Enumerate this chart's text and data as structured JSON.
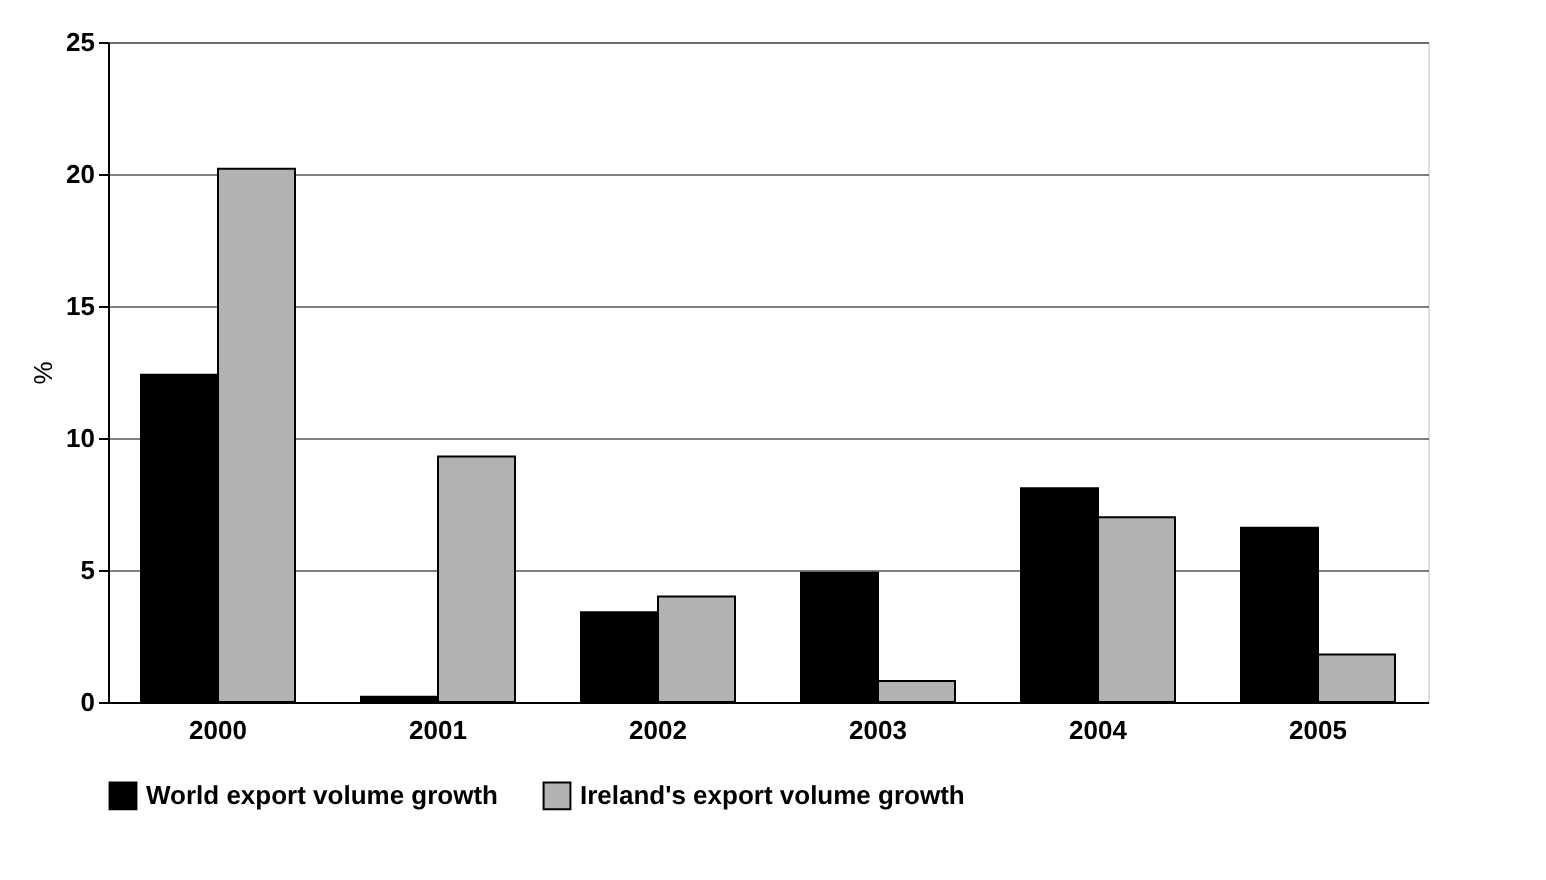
{
  "chart_data": {
    "type": "bar",
    "ylabel": "%",
    "categories": [
      "2000",
      "2001",
      "2002",
      "2003",
      "2004",
      "2005"
    ],
    "series": [
      {
        "name": "World export volume growth",
        "color": "#000000",
        "values": [
          12.4,
          0.2,
          3.4,
          4.9,
          8.1,
          6.6
        ]
      },
      {
        "name": "Ireland's export volume growth",
        "color": "#b2b2b2",
        "values": [
          20.2,
          9.3,
          4.0,
          0.8,
          7.0,
          1.8
        ]
      }
    ],
    "ylim": [
      0,
      25
    ],
    "yticks": [
      0,
      5,
      10,
      15,
      20,
      25
    ],
    "grid": "y",
    "legend": "bottom"
  }
}
